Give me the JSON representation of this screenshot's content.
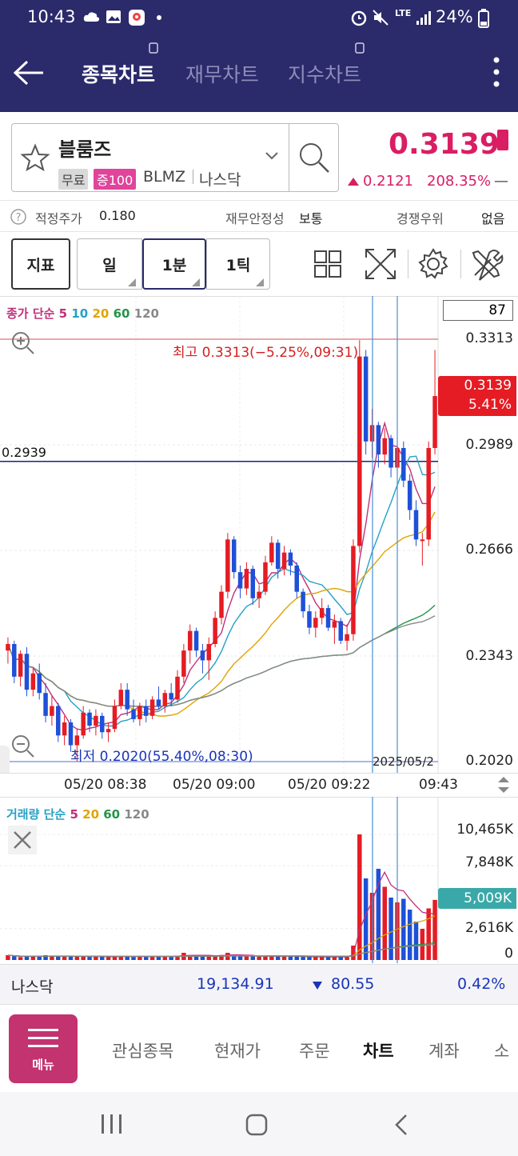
{
  "status_bar": {
    "time": "10:43",
    "signal": "LTE",
    "battery": "24%"
  },
  "header": {
    "tabs": [
      "종목차트",
      "재무차트",
      "지수차트"
    ],
    "active_tab": 0
  },
  "stock": {
    "name": "블룸즈",
    "badge_free": "무료",
    "badge_margin": "증100",
    "ticker": "BLMZ",
    "exchange": "나스닥",
    "price": "0.3139",
    "change": "0.2121",
    "change_pct": "208.35%",
    "dash": "—",
    "fair_price_label": "적정주가",
    "fair_price": "0.180",
    "stability_label": "재무안정성",
    "stability": "보통",
    "competitive_label": "경쟁우위",
    "competitive": "없음"
  },
  "toolbar": {
    "indicator": "지표",
    "day": "일",
    "minute": "1분",
    "tick": "1틱"
  },
  "price_chart": {
    "legend_title": "종가 단순",
    "ma": [
      "5",
      "10",
      "20",
      "60",
      "120"
    ],
    "count_box": "87",
    "y_labels": [
      "0.3313",
      "0.2989",
      "0.2666",
      "0.2343",
      "0.2020"
    ],
    "cursor_price": "0.2939",
    "high_label": "최고 0.3313(−5.25%,09:31)",
    "low_label": "최저 0.2020(55.40%,08:30)",
    "current_price": "0.3139",
    "current_pct": "5.41%",
    "x_labels": [
      "05/20 08:38",
      "05/20 09:00",
      "05/20 09:22",
      "09:43"
    ],
    "overlap_label": "2025/05/2"
  },
  "volume_chart": {
    "legend_title": "거래량 단순",
    "ma": [
      "5",
      "20",
      "60",
      "120"
    ],
    "y_labels": [
      "10,465K",
      "7,848K",
      "2,616K",
      "0"
    ],
    "current": "5,009K"
  },
  "market": {
    "name": "나스닥",
    "value": "19,134.91",
    "change": "80.55",
    "pct": "0.42%"
  },
  "bottom_menu": {
    "menu_label": "메뉴",
    "items": [
      "관심종목",
      "현재가",
      "주문",
      "차트",
      "계좌",
      "소"
    ],
    "active": 3
  },
  "chart_data": {
    "type": "candlestick",
    "y_range": [
      0.202,
      0.3313
    ],
    "high": 0.3313,
    "low": 0.202,
    "last": 0.3139,
    "cursor": 0.2939,
    "candles": [
      [
        0.236,
        0.24,
        0.232,
        0.238
      ],
      [
        0.238,
        0.239,
        0.226,
        0.228
      ],
      [
        0.228,
        0.236,
        0.225,
        0.235
      ],
      [
        0.235,
        0.237,
        0.222,
        0.224
      ],
      [
        0.224,
        0.231,
        0.222,
        0.229
      ],
      [
        0.229,
        0.232,
        0.221,
        0.223
      ],
      [
        0.223,
        0.226,
        0.214,
        0.216
      ],
      [
        0.216,
        0.222,
        0.213,
        0.219
      ],
      [
        0.219,
        0.22,
        0.208,
        0.21
      ],
      [
        0.21,
        0.216,
        0.207,
        0.214
      ],
      [
        0.214,
        0.215,
        0.205,
        0.207
      ],
      [
        0.207,
        0.212,
        0.202,
        0.21
      ],
      [
        0.21,
        0.219,
        0.209,
        0.217
      ],
      [
        0.217,
        0.218,
        0.211,
        0.213
      ],
      [
        0.213,
        0.218,
        0.21,
        0.216
      ],
      [
        0.216,
        0.217,
        0.209,
        0.211
      ],
      [
        0.211,
        0.214,
        0.208,
        0.212
      ],
      [
        0.212,
        0.221,
        0.211,
        0.219
      ],
      [
        0.219,
        0.226,
        0.218,
        0.224
      ],
      [
        0.224,
        0.226,
        0.216,
        0.218
      ],
      [
        0.218,
        0.221,
        0.214,
        0.215
      ],
      [
        0.215,
        0.22,
        0.213,
        0.219
      ],
      [
        0.219,
        0.221,
        0.214,
        0.216
      ],
      [
        0.216,
        0.222,
        0.215,
        0.221
      ],
      [
        0.221,
        0.225,
        0.218,
        0.219
      ],
      [
        0.219,
        0.224,
        0.217,
        0.223
      ],
      [
        0.223,
        0.226,
        0.219,
        0.221
      ],
      [
        0.221,
        0.23,
        0.22,
        0.228
      ],
      [
        0.228,
        0.238,
        0.226,
        0.236
      ],
      [
        0.236,
        0.244,
        0.232,
        0.242
      ],
      [
        0.242,
        0.243,
        0.234,
        0.236
      ],
      [
        0.236,
        0.238,
        0.229,
        0.233
      ],
      [
        0.233,
        0.24,
        0.227,
        0.238
      ],
      [
        0.238,
        0.248,
        0.237,
        0.246
      ],
      [
        0.246,
        0.256,
        0.244,
        0.254
      ],
      [
        0.254,
        0.272,
        0.252,
        0.27
      ],
      [
        0.27,
        0.271,
        0.258,
        0.26
      ],
      [
        0.26,
        0.262,
        0.252,
        0.255
      ],
      [
        0.255,
        0.263,
        0.253,
        0.261
      ],
      [
        0.261,
        0.262,
        0.25,
        0.252
      ],
      [
        0.252,
        0.256,
        0.249,
        0.254
      ],
      [
        0.254,
        0.265,
        0.253,
        0.263
      ],
      [
        0.263,
        0.271,
        0.262,
        0.269
      ],
      [
        0.269,
        0.27,
        0.258,
        0.261
      ],
      [
        0.261,
        0.268,
        0.259,
        0.266
      ],
      [
        0.266,
        0.267,
        0.259,
        0.262
      ],
      [
        0.262,
        0.263,
        0.252,
        0.254
      ],
      [
        0.254,
        0.255,
        0.246,
        0.248
      ],
      [
        0.248,
        0.25,
        0.241,
        0.243
      ],
      [
        0.243,
        0.248,
        0.24,
        0.246
      ],
      [
        0.246,
        0.252,
        0.244,
        0.249
      ],
      [
        0.249,
        0.25,
        0.242,
        0.243
      ],
      [
        0.243,
        0.247,
        0.238,
        0.245
      ],
      [
        0.245,
        0.246,
        0.238,
        0.239
      ],
      [
        0.239,
        0.244,
        0.236,
        0.241
      ],
      [
        0.241,
        0.27,
        0.239,
        0.268
      ],
      [
        0.268,
        0.331,
        0.266,
        0.326
      ],
      [
        0.326,
        0.328,
        0.296,
        0.3
      ],
      [
        0.3,
        0.31,
        0.295,
        0.305
      ],
      [
        0.305,
        0.306,
        0.292,
        0.296
      ],
      [
        0.296,
        0.304,
        0.293,
        0.301
      ],
      [
        0.301,
        0.302,
        0.289,
        0.292
      ],
      [
        0.292,
        0.301,
        0.29,
        0.298
      ],
      [
        0.298,
        0.3,
        0.286,
        0.288
      ],
      [
        0.288,
        0.29,
        0.276,
        0.279
      ],
      [
        0.279,
        0.282,
        0.268,
        0.27
      ],
      [
        0.27,
        0.272,
        0.262,
        0.27
      ],
      [
        0.27,
        0.3,
        0.268,
        0.298
      ],
      [
        0.298,
        0.328,
        0.296,
        0.3139
      ]
    ],
    "volume_max_k": 10465,
    "volumes_k": [
      400,
      300,
      250,
      350,
      300,
      280,
      400,
      320,
      350,
      300,
      280,
      300,
      320,
      260,
      300,
      280,
      250,
      300,
      340,
      280,
      260,
      300,
      280,
      320,
      300,
      280,
      300,
      350,
      600,
      380,
      320,
      300,
      350,
      400,
      420,
      600,
      380,
      300,
      340,
      300,
      280,
      320,
      380,
      300,
      320,
      300,
      280,
      260,
      240,
      260,
      280,
      260,
      250,
      240,
      260,
      1200,
      10465,
      6800,
      5600,
      7600,
      6100,
      5200,
      4800,
      5100,
      4200,
      3200,
      2600,
      4300,
      5009
    ]
  }
}
